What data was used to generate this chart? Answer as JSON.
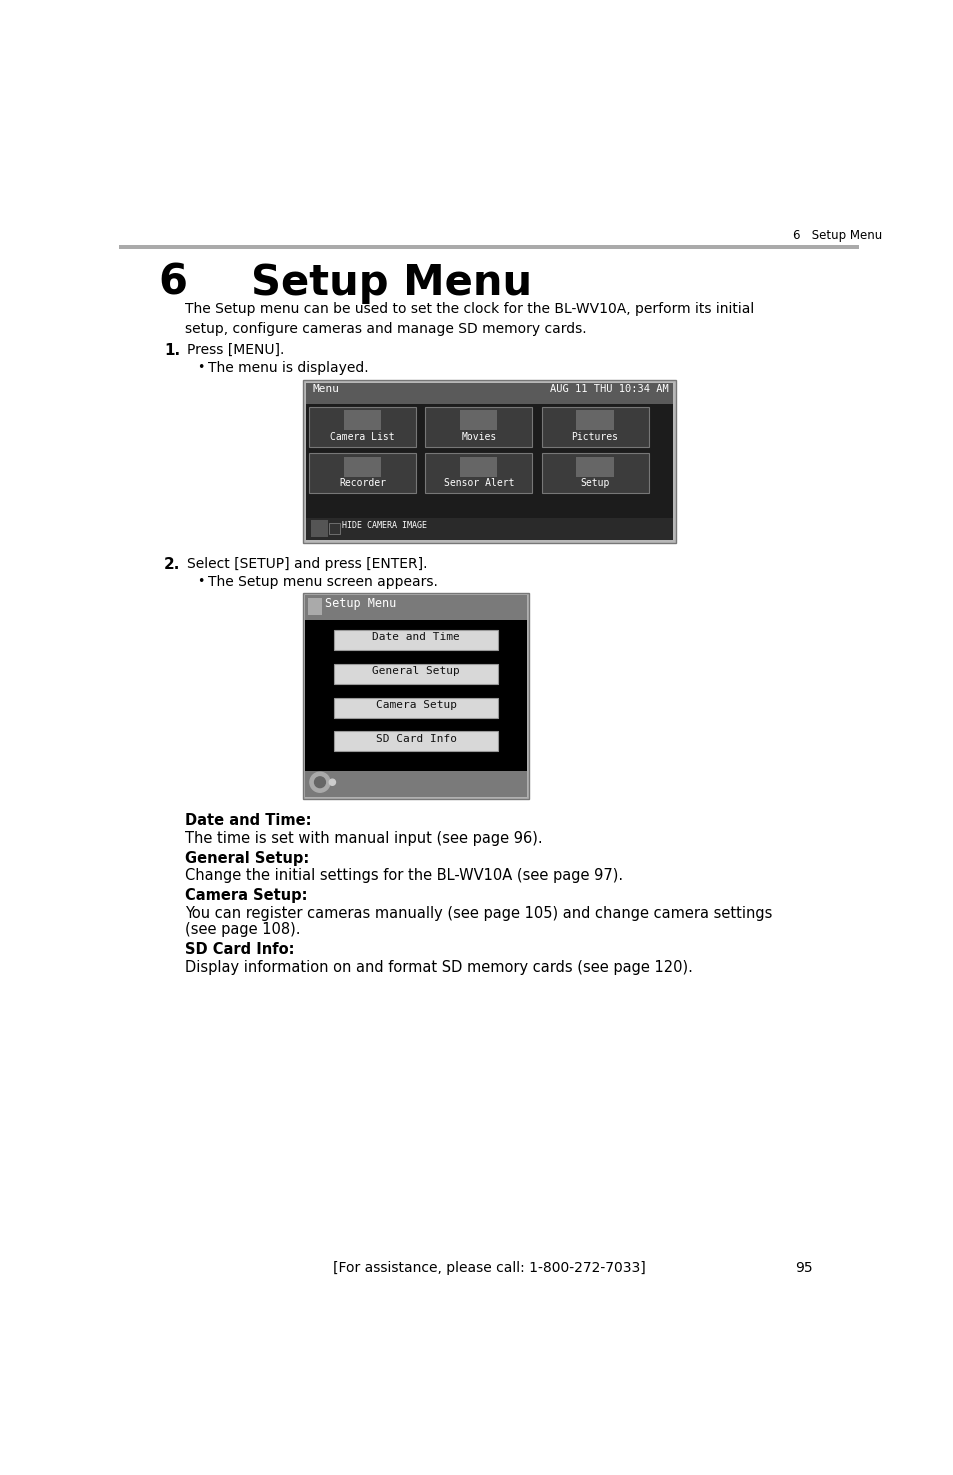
{
  "page_bg": "#ffffff",
  "header_line_color": "#aaaaaa",
  "header_text": "6   Setup Menu",
  "chapter_number": "6",
  "chapter_title": "    Setup Menu",
  "intro_text": "The Setup menu can be used to set the clock for the BL-WV10A, perform its initial\nsetup, configure cameras and manage SD memory cards.",
  "step1_label": "1.",
  "step1_text": "Press [MENU].",
  "step1_bullet": "The menu is displayed.",
  "step2_label": "2.",
  "step2_text": "Select [SETUP] and press [ENTER].",
  "step2_bullet": "The Setup menu screen appears.",
  "section_items": [
    {
      "label": "Date and Time:",
      "text": "The time is set with manual input (see page 96)."
    },
    {
      "label": "General Setup:",
      "text": "Change the initial settings for the BL-WV10A (see page 97)."
    },
    {
      "label": "Camera Setup:",
      "text": "You can register cameras manually (see page 105) and change camera settings\n(see page 108)."
    },
    {
      "label": "SD Card Info:",
      "text": "Display information on and format SD memory cards (see page 120)."
    }
  ],
  "footer_text": "[For assistance, please call: 1-800-272-7033]",
  "footer_page": "95",
  "menu_buttons_screen1": [
    "Camera List",
    "Movies",
    "Pictures",
    "Recorder",
    "Sensor Alert",
    "Setup"
  ],
  "menu_buttons_screen2": [
    "Date and Time",
    "General Setup",
    "Camera Setup",
    "SD Card Info"
  ]
}
